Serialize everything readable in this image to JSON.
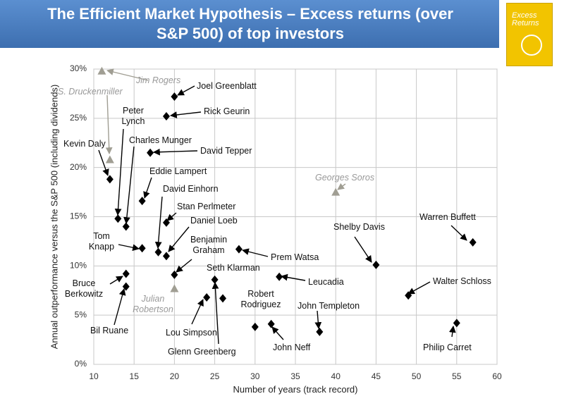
{
  "book_cover": {
    "title": "Excess Returns"
  },
  "chart_data": {
    "type": "scatter",
    "title": "The Efficient Market Hypothesis – Excess returns (over S&P 500) of  top investors",
    "x_label": "Number of years (track record)",
    "y_label": "Annual outperformance versus the S&P 500 (including dividends)",
    "xlim": [
      10,
      60
    ],
    "xticks": [
      10,
      15,
      20,
      25,
      30,
      35,
      40,
      45,
      50,
      55,
      60
    ],
    "ylim": [
      0,
      30
    ],
    "yticks": [
      {
        "value": 0,
        "label": "0%"
      },
      {
        "value": 5,
        "label": "5%"
      },
      {
        "value": 10,
        "label": "10%"
      },
      {
        "value": 15,
        "label": "15%"
      },
      {
        "value": 20,
        "label": "20%"
      },
      {
        "value": 25,
        "label": "25%"
      },
      {
        "value": 30,
        "label": "30%"
      }
    ],
    "grid": true,
    "series": [
      {
        "color": "#000000",
        "marker": "diamond",
        "labels": [
          "Joel Greenblatt",
          "Rick Geurin",
          "David Tepper",
          "Kevin Daly",
          "Eddie Lampert",
          "Peter Lynch",
          "Charles Munger",
          "Stan Perlmeter",
          "David Einhorn",
          "Daniel Loeb",
          "Tom Knapp",
          "Prem Watsa",
          "Benjamin Graham",
          "Shelby Davis",
          "Warren Buffett",
          "Leucadia",
          "Bruce Berkowitz",
          "Bil Ruane",
          "Seth Klarman",
          "Lou Simpson",
          "Glenn Greenberg",
          "Walter Schloss",
          "Robert Rodriguez",
          "John Neff",
          "John Templeton",
          "Philip Carret"
        ],
        "x": [
          20,
          19,
          17,
          12,
          16,
          13,
          14,
          19,
          18,
          19,
          16,
          28,
          20,
          45,
          57,
          33,
          14,
          14,
          25,
          24,
          26,
          49,
          30,
          32,
          38,
          55
        ],
        "y": [
          27.2,
          25.2,
          21.5,
          18.8,
          16.6,
          14.8,
          14.0,
          14.4,
          11.4,
          11.0,
          11.8,
          11.7,
          9.1,
          10.1,
          12.4,
          8.9,
          9.2,
          7.9,
          8.6,
          6.8,
          6.7,
          7.0,
          3.8,
          4.1,
          3.3,
          4.2
        ]
      },
      {
        "color": "#a09e93",
        "marker": "triangle",
        "labels": [
          "Jim Rogers",
          "S. Druckenmiller",
          "Georges Soros",
          "Julian Robertson"
        ],
        "x": [
          11,
          12,
          40,
          20
        ],
        "y": [
          29.8,
          20.8,
          17.5,
          7.7
        ]
      }
    ]
  }
}
